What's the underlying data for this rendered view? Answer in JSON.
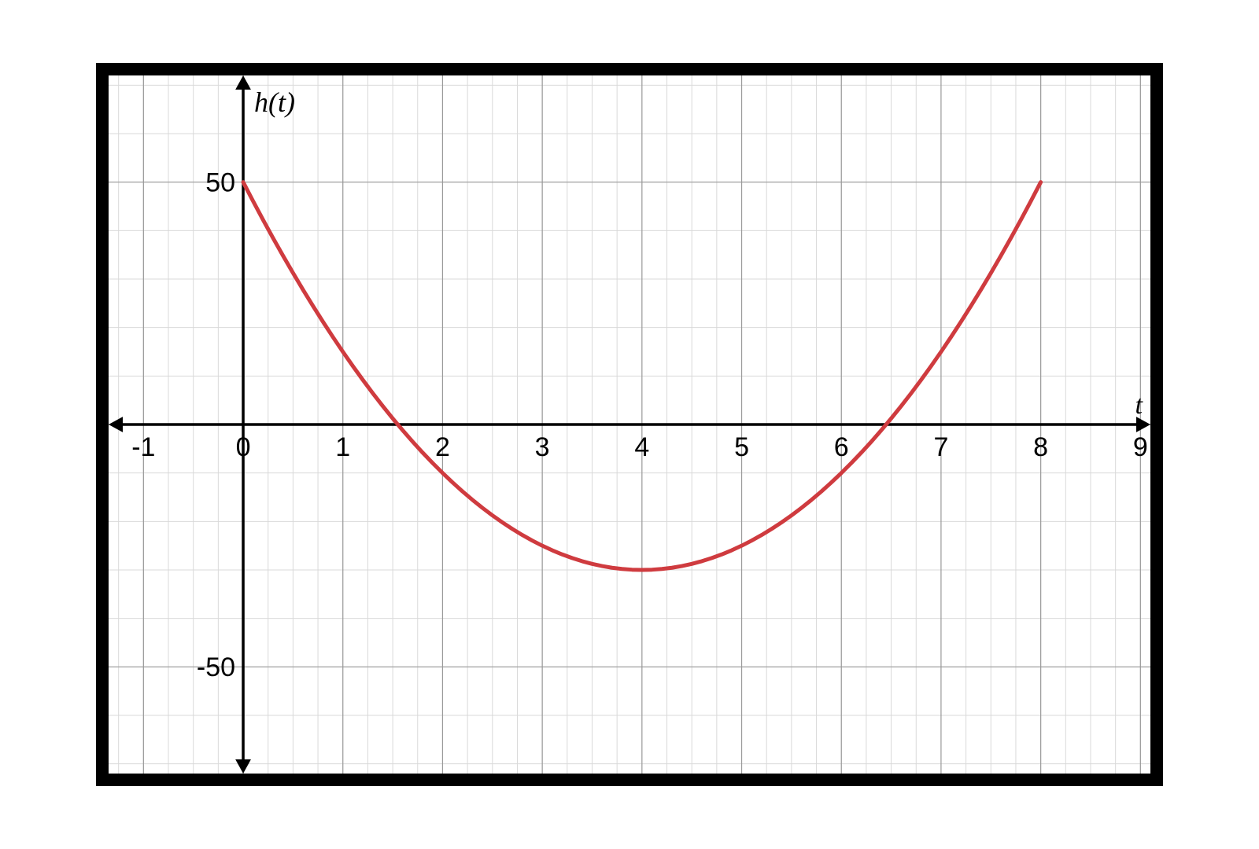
{
  "chart": {
    "type": "line",
    "outer_width": 1356,
    "outer_height": 920,
    "border_color": "#000000",
    "border_width": 16,
    "background_color": "#ffffff",
    "x": {
      "label": "t",
      "label_fontsize": 34,
      "label_fontstyle": "italic",
      "min": -1.35,
      "max": 9.1,
      "ticks": [
        -1,
        0,
        1,
        2,
        3,
        4,
        5,
        6,
        7,
        8,
        9
      ],
      "tick_labels": [
        "-1",
        "0",
        "1",
        "2",
        "3",
        "4",
        "5",
        "6",
        "7",
        "8",
        "9"
      ],
      "tick_fontsize": 34
    },
    "y": {
      "label": "h(t)",
      "label_fontsize": 36,
      "label_fontstyle": "italic",
      "min": -72,
      "max": 72,
      "ticks": [
        -50,
        50
      ],
      "tick_labels": [
        "-50",
        "50"
      ],
      "tick_fontsize": 34
    },
    "grid": {
      "major_color": "#9a9a9a",
      "major_width": 1.2,
      "minor_color": "#d9d9d9",
      "minor_width": 1,
      "x_major_step": 1,
      "x_minor_subdiv": 4,
      "y_major_step": 50,
      "y_minor_subdiv": 5
    },
    "axis": {
      "color": "#000000",
      "width": 3.5,
      "arrow_size": 18
    },
    "series": [
      {
        "name": "h(t)",
        "color": "#cf3b3f",
        "line_width": 5,
        "x_start": 0,
        "x_end": 8,
        "step": 0.1,
        "fn": {
          "a": 5,
          "h": 4,
          "k": -30
        }
      }
    ]
  }
}
